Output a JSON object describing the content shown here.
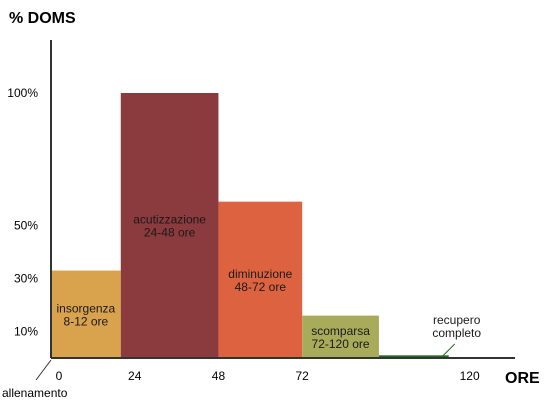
{
  "chart_data": {
    "type": "bar",
    "ylabel": "% DOMS",
    "xlabel": "ORE",
    "x_ticks": [
      "0",
      "24",
      "48",
      "72",
      "120"
    ],
    "x_tick_values": [
      0,
      24,
      48,
      72,
      120
    ],
    "y_ticks": [
      "10%",
      "30%",
      "50%",
      "100%"
    ],
    "y_tick_values": [
      10,
      30,
      50,
      100
    ],
    "origin_label": "allenamento",
    "xlim": [
      0,
      133
    ],
    "ylim": [
      0,
      120
    ],
    "bars": [
      {
        "label": [
          "insorgenza",
          "8-12 ore"
        ],
        "x0": 0,
        "x1": 20,
        "value": 33,
        "color": "#d9a24d"
      },
      {
        "label": [
          "acutizzazione",
          "24-48 ore"
        ],
        "x0": 20,
        "x1": 48,
        "value": 100,
        "color": "#8b3a3e"
      },
      {
        "label": [
          "diminuzione",
          "48-72 ore"
        ],
        "x0": 48,
        "x1": 72,
        "value": 59,
        "color": "#dd6340"
      },
      {
        "label": [
          "scomparsa",
          "72-120 ore"
        ],
        "x0": 72,
        "x1": 94,
        "value": 16,
        "color": "#a8ab5a"
      },
      {
        "label": [
          "recupero",
          "completo"
        ],
        "x0": 94,
        "x1": 114,
        "value": 1,
        "color": "#1e6b1e",
        "label_outside": true
      }
    ]
  }
}
